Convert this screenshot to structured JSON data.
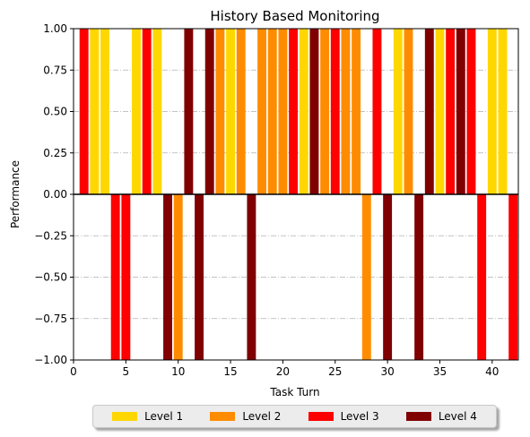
{
  "chart_data": {
    "type": "bar",
    "title": "History Based Monitoring",
    "xlabel": "Task Turn",
    "ylabel": "Performance",
    "xlim": [
      0,
      42.5
    ],
    "ylim": [
      -1.0,
      1.0
    ],
    "xticks": [
      0,
      5,
      10,
      15,
      20,
      25,
      30,
      35,
      40
    ],
    "yticks": [
      -1.0,
      -0.75,
      -0.5,
      -0.25,
      0.0,
      0.25,
      0.5,
      0.75,
      1.0
    ],
    "ytick_labels": [
      "−1.00",
      "−0.75",
      "−0.50",
      "−0.25",
      "0.00",
      "0.25",
      "0.50",
      "0.75",
      "1.00"
    ],
    "grid": "horizontal dash-dot",
    "legend_position": "bottom-center",
    "series": [
      {
        "name": "Level 1",
        "color": "#FFD700"
      },
      {
        "name": "Level 2",
        "color": "#FF8C00"
      },
      {
        "name": "Level 3",
        "color": "#FF0000"
      },
      {
        "name": "Level 4",
        "color": "#800000"
      }
    ],
    "bars": [
      {
        "x": 1,
        "value": 1,
        "level": 3
      },
      {
        "x": 2,
        "value": 1,
        "level": 1
      },
      {
        "x": 3,
        "value": 1,
        "level": 1
      },
      {
        "x": 4,
        "value": -1,
        "level": 3
      },
      {
        "x": 5,
        "value": -1,
        "level": 3
      },
      {
        "x": 6,
        "value": 1,
        "level": 1
      },
      {
        "x": 7,
        "value": 1,
        "level": 3
      },
      {
        "x": 8,
        "value": 1,
        "level": 1
      },
      {
        "x": 9,
        "value": -1,
        "level": 4
      },
      {
        "x": 10,
        "value": -1,
        "level": 2
      },
      {
        "x": 11,
        "value": 1,
        "level": 4
      },
      {
        "x": 12,
        "value": -1,
        "level": 4
      },
      {
        "x": 13,
        "value": 1,
        "level": 4
      },
      {
        "x": 14,
        "value": 1,
        "level": 2
      },
      {
        "x": 15,
        "value": 1,
        "level": 1
      },
      {
        "x": 16,
        "value": 1,
        "level": 2
      },
      {
        "x": 17,
        "value": -1,
        "level": 4
      },
      {
        "x": 18,
        "value": 1,
        "level": 2
      },
      {
        "x": 19,
        "value": 1,
        "level": 2
      },
      {
        "x": 20,
        "value": 1,
        "level": 2
      },
      {
        "x": 21,
        "value": 1,
        "level": 3
      },
      {
        "x": 22,
        "value": 1,
        "level": 1
      },
      {
        "x": 23,
        "value": 1,
        "level": 4
      },
      {
        "x": 24,
        "value": 1,
        "level": 2
      },
      {
        "x": 25,
        "value": 1,
        "level": 3
      },
      {
        "x": 26,
        "value": 1,
        "level": 2
      },
      {
        "x": 27,
        "value": 1,
        "level": 2
      },
      {
        "x": 28,
        "value": -1,
        "level": 2
      },
      {
        "x": 29,
        "value": 1,
        "level": 3
      },
      {
        "x": 30,
        "value": -1,
        "level": 4
      },
      {
        "x": 31,
        "value": 1,
        "level": 1
      },
      {
        "x": 32,
        "value": 1,
        "level": 2
      },
      {
        "x": 33,
        "value": -1,
        "level": 4
      },
      {
        "x": 34,
        "value": 1,
        "level": 4
      },
      {
        "x": 35,
        "value": 1,
        "level": 1
      },
      {
        "x": 36,
        "value": 1,
        "level": 3
      },
      {
        "x": 37,
        "value": 1,
        "level": 4
      },
      {
        "x": 38,
        "value": 1,
        "level": 3
      },
      {
        "x": 39,
        "value": -1,
        "level": 3
      },
      {
        "x": 40,
        "value": 1,
        "level": 1
      },
      {
        "x": 41,
        "value": 1,
        "level": 1
      },
      {
        "x": 42,
        "value": -1,
        "level": 3
      }
    ]
  }
}
